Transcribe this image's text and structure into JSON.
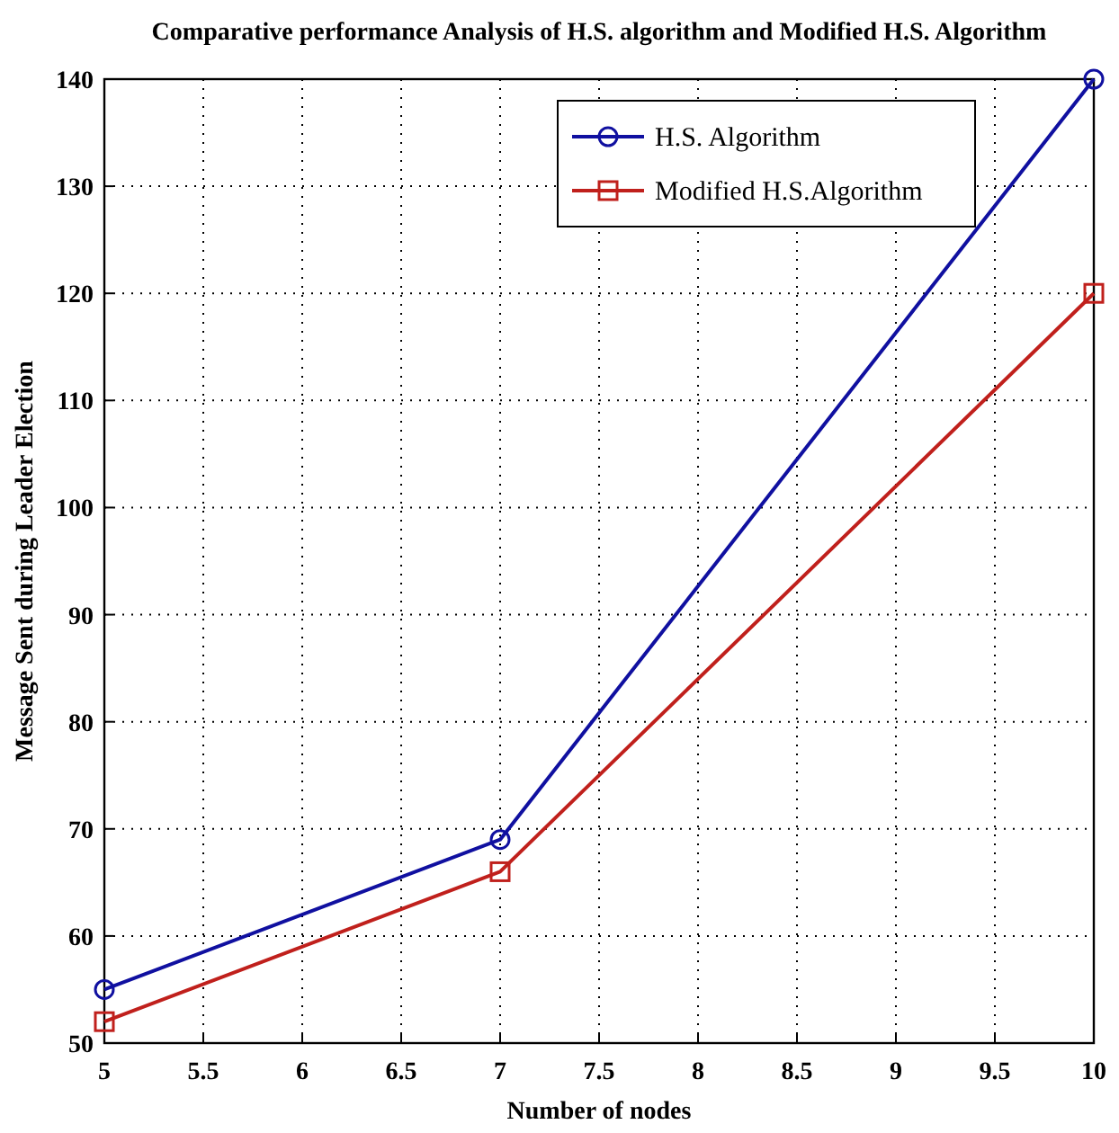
{
  "chart_data": {
    "type": "line",
    "title": "Comparative performance Analysis of H.S. algorithm and Modified H.S. Algorithm",
    "xlabel": "Number of nodes",
    "ylabel": "Message Sent during Leader Election",
    "x": [
      5,
      7,
      10
    ],
    "series": [
      {
        "name": "H.S. Algorithm",
        "color": "#1010a0",
        "values": [
          55,
          69,
          140
        ],
        "marker": "circle"
      },
      {
        "name": "Modified H.S.Algorithm",
        "color": "#c0201c",
        "values": [
          52,
          66,
          120
        ],
        "marker": "square"
      }
    ],
    "xlim": [
      5,
      10
    ],
    "xticks": [
      5,
      5.5,
      6,
      6.5,
      7,
      7.5,
      8,
      8.5,
      9,
      9.5,
      10
    ],
    "ylim": [
      50,
      140
    ],
    "yticks": [
      50,
      60,
      70,
      80,
      90,
      100,
      110,
      120,
      130,
      140
    ],
    "grid": true,
    "legend": "top right",
    "line_style": "solid"
  }
}
